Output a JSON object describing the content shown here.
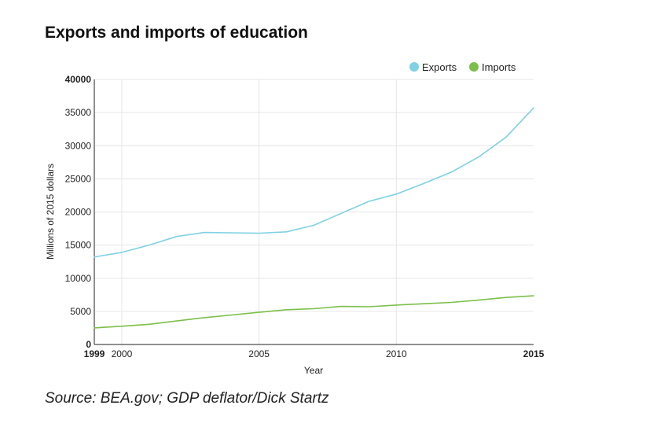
{
  "chart_data": {
    "type": "line",
    "title": "Exports and imports of education",
    "xlabel": "Year",
    "ylabel": "Millions of 2015 dollars",
    "xlim": [
      1999,
      2015
    ],
    "ylim": [
      0,
      40000
    ],
    "x_ticks": [
      {
        "value": 1999,
        "label": "1999",
        "bold": true
      },
      {
        "value": 2000,
        "label": "2000",
        "bold": false
      },
      {
        "value": 2005,
        "label": "2005",
        "bold": false
      },
      {
        "value": 2010,
        "label": "2010",
        "bold": false
      },
      {
        "value": 2015,
        "label": "2015",
        "bold": true
      }
    ],
    "y_ticks": [
      {
        "value": 0,
        "label": "0",
        "bold": true
      },
      {
        "value": 5000,
        "label": "5000",
        "bold": false
      },
      {
        "value": 10000,
        "label": "10000",
        "bold": false
      },
      {
        "value": 15000,
        "label": "15000",
        "bold": false
      },
      {
        "value": 20000,
        "label": "20000",
        "bold": false
      },
      {
        "value": 25000,
        "label": "25000",
        "bold": false
      },
      {
        "value": 30000,
        "label": "30000",
        "bold": false
      },
      {
        "value": 35000,
        "label": "35000",
        "bold": false
      },
      {
        "value": 40000,
        "label": "40000",
        "bold": true
      }
    ],
    "x_gridlines": [
      2000,
      2005,
      2010
    ],
    "grid": true,
    "legend_position": "top-right",
    "x": [
      1999,
      2000,
      2001,
      2002,
      2003,
      2004,
      2005,
      2006,
      2007,
      2008,
      2009,
      2010,
      2011,
      2012,
      2013,
      2014,
      2015
    ],
    "series": [
      {
        "name": "Exports",
        "color": "#7fd1e3",
        "values": [
          13200,
          13900,
          15000,
          16300,
          16900,
          16850,
          16800,
          17000,
          18000,
          19800,
          21600,
          22700,
          24300,
          26000,
          28300,
          31300,
          35700
        ]
      },
      {
        "name": "Imports",
        "color": "#7cbf4a",
        "values": [
          2500,
          2750,
          3050,
          3550,
          4050,
          4450,
          4850,
          5250,
          5400,
          5750,
          5700,
          5950,
          6150,
          6350,
          6700,
          7100,
          7350
        ]
      }
    ]
  },
  "source": "Source: BEA.gov; GDP deflator/Dick Startz"
}
